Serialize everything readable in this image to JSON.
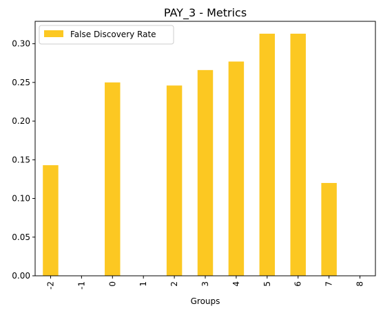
{
  "chart_data": {
    "type": "bar",
    "title": "PAY_3 - Metrics",
    "xlabel": "Groups",
    "ylabel": "",
    "categories": [
      "-2",
      "-1",
      "0",
      "1",
      "2",
      "3",
      "4",
      "5",
      "6",
      "7",
      "8"
    ],
    "series": [
      {
        "name": "False Discovery Rate",
        "color": "#fcc822",
        "values": [
          0.143,
          0.0,
          0.25,
          0.0,
          0.246,
          0.266,
          0.277,
          0.313,
          0.313,
          0.12,
          0.0
        ]
      }
    ],
    "ylim": [
      0,
      0.329
    ],
    "yticks": [
      0.0,
      0.05,
      0.1,
      0.15,
      0.2,
      0.25,
      0.3
    ],
    "ytick_labels": [
      "0.00",
      "0.05",
      "0.10",
      "0.15",
      "0.20",
      "0.25",
      "0.30"
    ],
    "grid": false,
    "legend_position": "top-left"
  }
}
